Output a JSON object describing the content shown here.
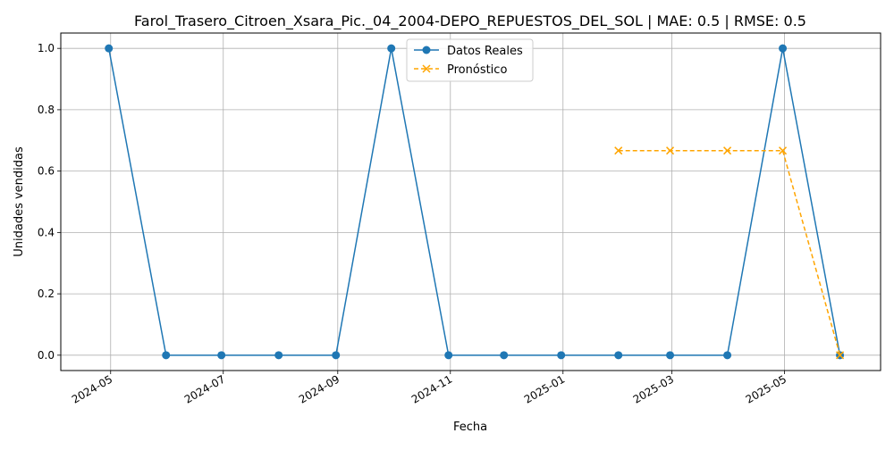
{
  "chart_data": {
    "type": "line",
    "title": "Farol_Trasero_Citroen_Xsara_Pic._04_2004-DEPO_REPUESTOS_DEL_SOL | MAE: 0.5 | RMSE: 0.5",
    "xlabel": "Fecha",
    "ylabel": "Unidades vendidas",
    "grid": true,
    "legend_position": "top-center",
    "xlim": [
      "2024-04-04",
      "2025-06-22"
    ],
    "ylim": [
      -0.05,
      1.05
    ],
    "x_ticks": [
      "2024-05",
      "2024-07",
      "2024-09",
      "2024-11",
      "2025-01",
      "2025-03",
      "2025-05"
    ],
    "y_ticks": [
      "0.0",
      "0.2",
      "0.4",
      "0.6",
      "0.8",
      "1.0"
    ],
    "series": [
      {
        "name": "Datos Reales",
        "color": "#1f77b4",
        "marker": "circle",
        "line_style": "solid",
        "x": [
          "2024-04-30",
          "2024-05-31",
          "2024-06-30",
          "2024-07-31",
          "2024-08-31",
          "2024-09-30",
          "2024-10-31",
          "2024-11-30",
          "2024-12-31",
          "2025-01-31",
          "2025-02-28",
          "2025-03-31",
          "2025-04-30",
          "2025-05-31"
        ],
        "values": [
          1,
          0,
          0,
          0,
          0,
          1,
          0,
          0,
          0,
          0,
          0,
          0,
          1,
          0
        ]
      },
      {
        "name": "Pronóstico",
        "color": "#ffa500",
        "marker": "x",
        "line_style": "dashed",
        "x": [
          "2025-01-31",
          "2025-02-28",
          "2025-03-31",
          "2025-04-30",
          "2025-05-31"
        ],
        "values": [
          0.6667,
          0.6667,
          0.6667,
          0.6667,
          0.0
        ]
      }
    ]
  }
}
